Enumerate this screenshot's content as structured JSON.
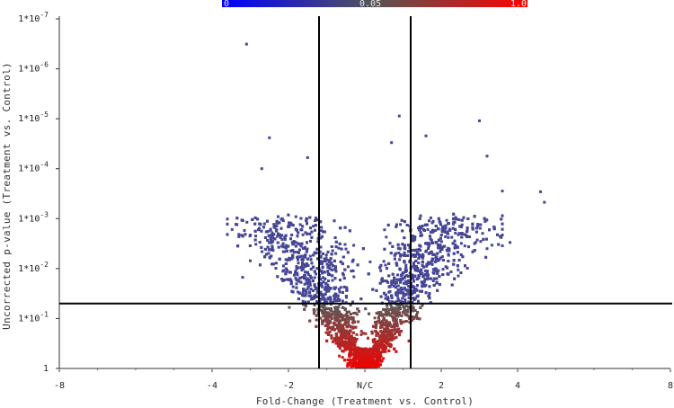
{
  "chart_data": {
    "type": "scatter",
    "title": "",
    "xlabel": "Fold-Change (Treatment vs. Control)",
    "ylabel": "Uncorrected p-value (Treatment vs. Control)",
    "xlim": [
      -8,
      8
    ],
    "y_scale": "log",
    "ylim_p": [
      1,
      1e-07
    ],
    "x_tick_values": [
      -8,
      -4,
      -2,
      0,
      2,
      4,
      8
    ],
    "x_tick_labels": [
      "-8",
      "-4",
      "-2",
      "N/C",
      "2",
      "4",
      "8"
    ],
    "y_tick_values": [
      1e-07,
      1e-06,
      1e-05,
      0.0001,
      0.001,
      0.01,
      0.1,
      1
    ],
    "y_tick_labels": [
      "1*10^-7",
      "1*10^-6",
      "1*10^-5",
      "1*10^-4",
      "1*10^-3",
      "1*10^-2",
      "1*10^-1",
      "1"
    ],
    "thresholds": {
      "fold_change": [
        -1.2,
        1.2
      ],
      "p_value": 0.05
    },
    "colorbar": {
      "labels": [
        "0",
        "0.05",
        "1.0"
      ],
      "colors": [
        "#0000ff",
        "#555555",
        "#ff0000"
      ]
    },
    "outlier_points": [
      {
        "x": -3.1,
        "p": 3.2e-07
      },
      {
        "x": -2.5,
        "p": 2.4e-05
      },
      {
        "x": -2.7,
        "p": 0.0001
      },
      {
        "x": 1.6,
        "p": 2.2e-05
      },
      {
        "x": 0.9,
        "p": 8.8e-06
      },
      {
        "x": 3.0,
        "p": 1.1e-05
      },
      {
        "x": 3.2,
        "p": 5.6e-05
      },
      {
        "x": 4.6,
        "p": 0.00029
      },
      {
        "x": 4.7,
        "p": 0.00047
      },
      {
        "x": 3.6,
        "p": 0.00028
      },
      {
        "x": 3.8,
        "p": 0.003
      },
      {
        "x": 3.2,
        "p": 0.004
      },
      {
        "x": -3.3,
        "p": 0.0023
      },
      {
        "x": -3.2,
        "p": 0.015
      },
      {
        "x": -3.0,
        "p": 0.007
      },
      {
        "x": 0.7,
        "p": 3e-05
      },
      {
        "x": -1.5,
        "p": 6e-05
      },
      {
        "x": 2.9,
        "p": 0.003
      }
    ],
    "n_points_approx": 4200
  }
}
